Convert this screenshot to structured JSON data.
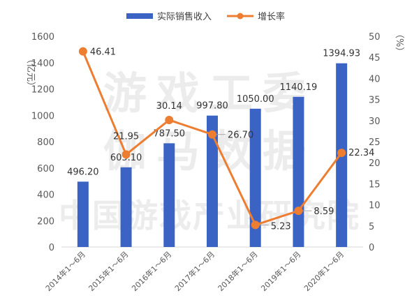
{
  "chart_data": {
    "type": "bar",
    "categories": [
      "2014年1～6月",
      "2015年1～6月",
      "2016年1～6月",
      "2017年1～6月",
      "2018年1～6月",
      "2019年1～6月",
      "2020年1～6月"
    ],
    "series": [
      {
        "name": "实际销售收入",
        "type": "bar",
        "axis": "left",
        "color": "#3a63c3",
        "values": [
          496.2,
          605.1,
          787.5,
          997.8,
          1050.0,
          1140.19,
          1394.93
        ],
        "labels": [
          "496.20",
          "605.10",
          "787.50",
          "997.80",
          "1050.00",
          "1140.19",
          "1394.93"
        ]
      },
      {
        "name": "增长率",
        "type": "line",
        "axis": "right",
        "color": "#ed7d31",
        "values": [
          46.41,
          21.95,
          30.14,
          26.7,
          5.23,
          8.59,
          22.34
        ],
        "labels": [
          "46.41",
          "21.95",
          "30.14",
          "26.70",
          "5.23",
          "8.59",
          "22.34"
        ]
      }
    ],
    "ylabel_left": "（亿元）",
    "ylabel_right": "（%）",
    "ylim_left": [
      0,
      1600
    ],
    "yticks_left": [
      "0",
      "200",
      "400",
      "600",
      "800",
      "1000",
      "1200",
      "1400",
      "1600"
    ],
    "ylim_right": [
      0,
      50
    ],
    "yticks_right": [
      "0",
      "5",
      "10",
      "15",
      "20",
      "25",
      "30",
      "35",
      "40",
      "45",
      "50"
    ],
    "legend_position": "top",
    "grid": false
  },
  "watermark": {
    "line1": "游戏工委",
    "line2": "伽马数据",
    "line3": "中国游戏产业研究院"
  }
}
